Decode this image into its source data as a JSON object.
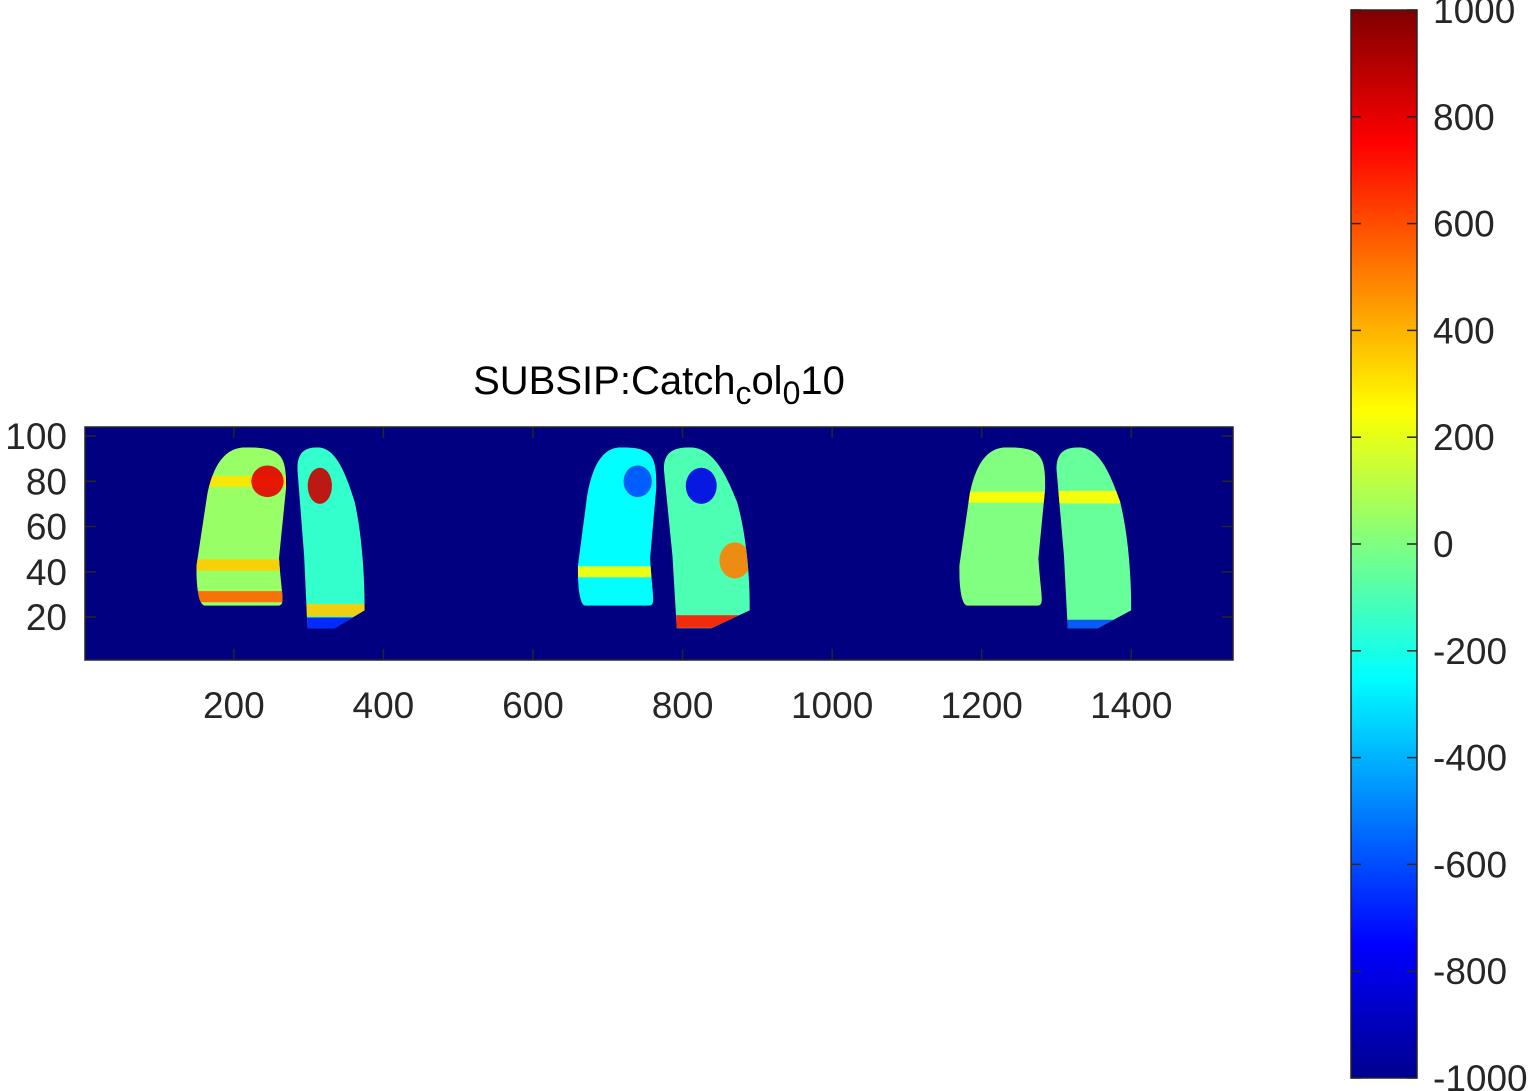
{
  "chart_data": {
    "type": "heatmap",
    "title_parts": [
      {
        "text": "SUBSIP:Catch",
        "sub": false
      },
      {
        "text": "c",
        "sub": true
      },
      {
        "text": "ol",
        "sub": false
      },
      {
        "text": "0",
        "sub": true
      },
      {
        "text": "10",
        "sub": false
      }
    ],
    "xlabel": "",
    "ylabel": "",
    "xlim": [
      1,
      1536
    ],
    "ylim": [
      1,
      104
    ],
    "x_ticks": [
      200,
      400,
      600,
      800,
      1000,
      1200,
      1400
    ],
    "x_tick_labels": [
      "200",
      "400",
      "600",
      "800",
      "1000",
      "1200",
      "1400"
    ],
    "y_ticks": [
      20,
      40,
      60,
      80,
      100
    ],
    "y_tick_labels": [
      "20",
      "40",
      "60",
      "80",
      "100"
    ],
    "colormap": "jet",
    "clim": [
      -1000,
      1000
    ],
    "colorbar_ticks": [
      1000,
      800,
      600,
      400,
      200,
      0,
      -200,
      -400,
      -600,
      -800,
      -1000
    ],
    "colorbar_tick_labels": [
      "1000",
      "800",
      "600",
      "400",
      "200",
      "0",
      "-200",
      "-400",
      "-600",
      "-800",
      "-1000"
    ],
    "background_value": -1000,
    "regions": [
      {
        "name": "left lung, panel 1",
        "x_range": [
          150,
          270
        ],
        "y_range": [
          25,
          95
        ],
        "base_value": 50,
        "features": [
          {
            "desc": "yellow band",
            "y": 80,
            "value": 300
          },
          {
            "desc": "red upper-right spot",
            "x": 245,
            "y": 80,
            "value": 800
          },
          {
            "desc": "lower yellow/orange band",
            "y": 43,
            "value": 350
          },
          {
            "desc": "bottom orange/red band",
            "y": 29,
            "value": 550
          }
        ]
      },
      {
        "name": "right lung, panel 1",
        "x_range": [
          285,
          375
        ],
        "y_range": [
          15,
          95
        ],
        "base_value": -150,
        "features": [
          {
            "desc": "red upper spot",
            "x": 315,
            "y": 78,
            "value": 850
          },
          {
            "desc": "yellow mid band",
            "y": 23,
            "value": 350
          },
          {
            "desc": "blue bottom band",
            "y": 17,
            "value": -700
          }
        ]
      },
      {
        "name": "left lung, panel 2",
        "x_range": [
          660,
          765
        ],
        "y_range": [
          25,
          95
        ],
        "base_value": -250,
        "features": [
          {
            "desc": "blue upper region",
            "x": 740,
            "y": 80,
            "value": -600
          },
          {
            "desc": "yellow lower band",
            "y": 40,
            "value": 250
          }
        ]
      },
      {
        "name": "right lung, panel 2",
        "x_range": [
          775,
          890
        ],
        "y_range": [
          15,
          95
        ],
        "base_value": -100,
        "features": [
          {
            "desc": "dark blue upper spot",
            "x": 825,
            "y": 78,
            "value": -800
          },
          {
            "desc": "orange right edge",
            "x": 870,
            "y": 45,
            "value": 500
          },
          {
            "desc": "red bottom band",
            "y": 18,
            "value": 700
          }
        ]
      },
      {
        "name": "left lung, panel 3",
        "x_range": [
          1170,
          1285
        ],
        "y_range": [
          25,
          95
        ],
        "base_value": 0,
        "features": [
          {
            "desc": "yellow stripe",
            "y": 73,
            "value": 250
          }
        ]
      },
      {
        "name": "right lung, panel 3",
        "x_range": [
          1300,
          1400
        ],
        "y_range": [
          15,
          95
        ],
        "base_value": -50,
        "features": [
          {
            "desc": "yellow stripe",
            "y": 73,
            "value": 250
          },
          {
            "desc": "blue bottom band",
            "y": 16,
            "value": -600
          }
        ]
      }
    ]
  }
}
